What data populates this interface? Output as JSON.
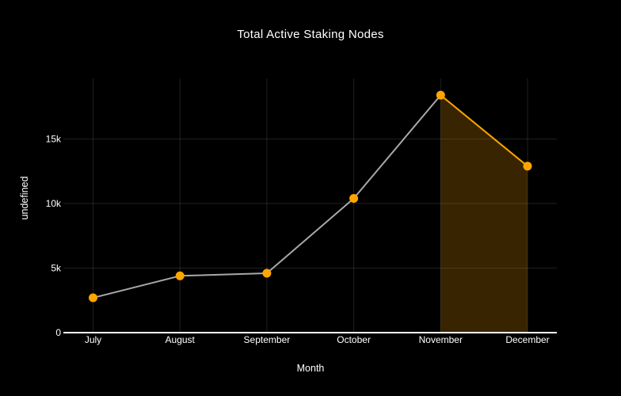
{
  "chart": {
    "background": "#000000",
    "text_color": "#FFFFFF"
  },
  "chart_data": {
    "type": "line",
    "title": "Total Active Staking Nodes",
    "xlabel": "Month",
    "ylabel": "undefined",
    "categories": [
      "July",
      "August",
      "September",
      "October",
      "November",
      "December"
    ],
    "series": [
      {
        "name": "Total Active Staking Nodes",
        "values": [
          2700,
          4400,
          4600,
          10400,
          18400,
          12900
        ],
        "point_color": "#FFA500",
        "segment_colors": [
          "#A8A8A8",
          "#A8A8A8",
          "#A8A8A8",
          "#A8A8A8",
          "#FFA500"
        ]
      }
    ],
    "y_ticks": [
      {
        "label": "0",
        "value": 0
      },
      {
        "label": "5k",
        "value": 5000
      },
      {
        "label": "10k",
        "value": 10000
      },
      {
        "label": "15k",
        "value": 15000
      }
    ],
    "ylim": [
      0,
      19700
    ],
    "grid": true,
    "legend": false,
    "highlight_area": {
      "from": "November",
      "to": "December",
      "fill_color": "rgba(255,165,0,0.22)"
    },
    "colors": {
      "accent_orange": "#FFA500",
      "line_gray": "#A8A8A8",
      "grid": "rgba(255,255,255,0.12)",
      "axis_line": "#FFFFFF",
      "background": "#000000",
      "text": "#FFFFFF"
    }
  }
}
